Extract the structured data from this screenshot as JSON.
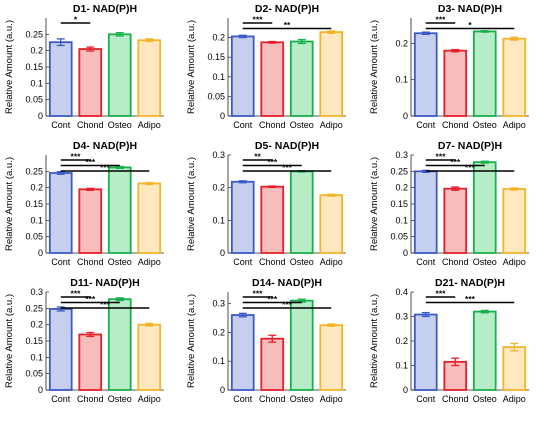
{
  "legend": {
    "colors": {
      "Cont": {
        "fill": "#c7cfee",
        "stroke": "#3a5bc7"
      },
      "Chond": {
        "fill": "#f7bcbc",
        "stroke": "#e4202a"
      },
      "Osteo": {
        "fill": "#b6ecc7",
        "stroke": "#18b04a"
      },
      "Adipo": {
        "fill": "#fde8bf",
        "stroke": "#f3b429"
      }
    }
  },
  "chart_data": [
    {
      "type": "bar",
      "title": "D1- NAD(P)H",
      "ylabel": "Relative Amount (a.u.)",
      "categories": [
        "Cont",
        "Chond",
        "Osteo",
        "Adipo"
      ],
      "values": [
        0.226,
        0.205,
        0.25,
        0.232
      ],
      "errors": [
        0.01,
        0.006,
        0.005,
        0.004
      ],
      "ylim": [
        0,
        0.3
      ],
      "yticks": [
        "0",
        "0.05",
        "0.1",
        "0.15",
        "0.2",
        "0.25"
      ],
      "ytick_values": [
        0,
        0.05,
        0.1,
        0.15,
        0.2,
        0.25
      ],
      "significance": [
        {
          "from": 0,
          "to": 1,
          "label": "*"
        }
      ]
    },
    {
      "type": "bar",
      "title": "D2- NAD(P)H",
      "ylabel": "Relative Amount (a.u.)",
      "categories": [
        "Cont",
        "Chond",
        "Osteo",
        "Adipo"
      ],
      "values": [
        0.203,
        0.188,
        0.19,
        0.214
      ],
      "errors": [
        0.003,
        0.002,
        0.005,
        0.003
      ],
      "ylim": [
        0,
        0.25
      ],
      "yticks": [
        "0",
        "0.05",
        "0.1",
        "0.15",
        "0.2"
      ],
      "ytick_values": [
        0,
        0.05,
        0.1,
        0.15,
        0.2
      ],
      "significance": [
        {
          "from": 0,
          "to": 1,
          "label": "***"
        },
        {
          "from": 0,
          "to": 3,
          "label": "**"
        }
      ]
    },
    {
      "type": "bar",
      "title": "D3- NAD(P)H",
      "ylabel": "Relative Amount (a.u.)",
      "categories": [
        "Cont",
        "Chond",
        "Osteo",
        "Adipo"
      ],
      "values": [
        0.228,
        0.18,
        0.233,
        0.213
      ],
      "errors": [
        0.003,
        0.003,
        0.002,
        0.004
      ],
      "ylim": [
        0,
        0.27
      ],
      "yticks": [
        "0",
        "0.1",
        "0.2"
      ],
      "ytick_values": [
        0,
        0.1,
        0.2
      ],
      "significance": [
        {
          "from": 0,
          "to": 1,
          "label": "***"
        },
        {
          "from": 0,
          "to": 3,
          "label": "*"
        }
      ]
    },
    {
      "type": "bar",
      "title": "D4- NAD(P)H",
      "ylabel": "Relative Amount (a.u.)",
      "categories": [
        "Cont",
        "Chond",
        "Osteo",
        "Adipo"
      ],
      "values": [
        0.245,
        0.195,
        0.262,
        0.213
      ],
      "errors": [
        0.004,
        0.003,
        0.003,
        0.003
      ],
      "ylim": [
        0,
        0.3
      ],
      "yticks": [
        "0",
        "0.05",
        "0.1",
        "0.15",
        "0.2",
        "0.25"
      ],
      "ytick_values": [
        0,
        0.05,
        0.1,
        0.15,
        0.2,
        0.25
      ],
      "significance": [
        {
          "from": 0,
          "to": 1,
          "label": "***"
        },
        {
          "from": 0,
          "to": 2,
          "label": "***"
        },
        {
          "from": 0,
          "to": 3,
          "label": "***"
        }
      ]
    },
    {
      "type": "bar",
      "title": "D5- NAD(P)H",
      "ylabel": "Relative Amount (a.u.)",
      "categories": [
        "Cont",
        "Chond",
        "Osteo",
        "Adipo"
      ],
      "values": [
        0.218,
        0.203,
        0.25,
        0.177
      ],
      "errors": [
        0.003,
        0.002,
        0.002,
        0.003
      ],
      "ylim": [
        0,
        0.3
      ],
      "yticks": [
        "0",
        "0.1",
        "0.2",
        "0.3"
      ],
      "ytick_values": [
        0,
        0.1,
        0.2,
        0.3
      ],
      "significance": [
        {
          "from": 0,
          "to": 1,
          "label": "**"
        },
        {
          "from": 0,
          "to": 2,
          "label": "***"
        },
        {
          "from": 0,
          "to": 3,
          "label": "***"
        }
      ]
    },
    {
      "type": "bar",
      "title": "D7- NAD(P)H",
      "ylabel": "Relative Amount (a.u.)",
      "categories": [
        "Cont",
        "Chond",
        "Osteo",
        "Adipo"
      ],
      "values": [
        0.25,
        0.197,
        0.278,
        0.196
      ],
      "errors": [
        0.003,
        0.005,
        0.003,
        0.003
      ],
      "ylim": [
        0,
        0.3
      ],
      "yticks": [
        "0",
        "0.05",
        "0.1",
        "0.15",
        "0.2",
        "0.25",
        "0.3"
      ],
      "ytick_values": [
        0,
        0.05,
        0.1,
        0.15,
        0.2,
        0.25,
        0.3
      ],
      "significance": [
        {
          "from": 0,
          "to": 1,
          "label": "***"
        },
        {
          "from": 0,
          "to": 2,
          "label": "***"
        },
        {
          "from": 0,
          "to": 3,
          "label": "***"
        }
      ]
    },
    {
      "type": "bar",
      "title": "D11- NAD(P)H",
      "ylabel": "Relative Amount (a.u.)",
      "categories": [
        "Cont",
        "Chond",
        "Osteo",
        "Adipo"
      ],
      "values": [
        0.248,
        0.17,
        0.278,
        0.2
      ],
      "errors": [
        0.006,
        0.006,
        0.004,
        0.004
      ],
      "ylim": [
        0,
        0.3
      ],
      "yticks": [
        "0",
        "0.05",
        "0.1",
        "0.15",
        "0.2",
        "0.25",
        "0.3"
      ],
      "ytick_values": [
        0,
        0.05,
        0.1,
        0.15,
        0.2,
        0.25,
        0.3
      ],
      "significance": [
        {
          "from": 0,
          "to": 1,
          "label": "***"
        },
        {
          "from": 0,
          "to": 2,
          "label": "***"
        },
        {
          "from": 0,
          "to": 3,
          "label": "***"
        }
      ]
    },
    {
      "type": "bar",
      "title": "D14- NAD(P)H",
      "ylabel": "Relative Amount (a.u.)",
      "categories": [
        "Cont",
        "Chond",
        "Osteo",
        "Adipo"
      ],
      "values": [
        0.26,
        0.178,
        0.31,
        0.225
      ],
      "errors": [
        0.006,
        0.012,
        0.005,
        0.004
      ],
      "ylim": [
        0,
        0.34
      ],
      "yticks": [
        "0",
        "0.1",
        "0.2",
        "0.3"
      ],
      "ytick_values": [
        0,
        0.1,
        0.2,
        0.3
      ],
      "significance": [
        {
          "from": 0,
          "to": 1,
          "label": "***"
        },
        {
          "from": 0,
          "to": 2,
          "label": "***"
        },
        {
          "from": 0,
          "to": 3,
          "label": "***"
        }
      ]
    },
    {
      "type": "bar",
      "title": "D21- NAD(P)H",
      "ylabel": "Relative Amount (a.u.)",
      "categories": [
        "Cont",
        "Chond",
        "Osteo",
        "Adipo"
      ],
      "values": [
        0.308,
        0.115,
        0.32,
        0.175
      ],
      "errors": [
        0.008,
        0.015,
        0.005,
        0.015
      ],
      "ylim": [
        0,
        0.4
      ],
      "yticks": [
        "0",
        "0.1",
        "0.2",
        "0.3",
        "0.4"
      ],
      "ytick_values": [
        0,
        0.1,
        0.2,
        0.3,
        0.4
      ],
      "significance": [
        {
          "from": 0,
          "to": 1,
          "label": "***"
        },
        {
          "from": 0,
          "to": 3,
          "label": "***"
        }
      ]
    }
  ]
}
